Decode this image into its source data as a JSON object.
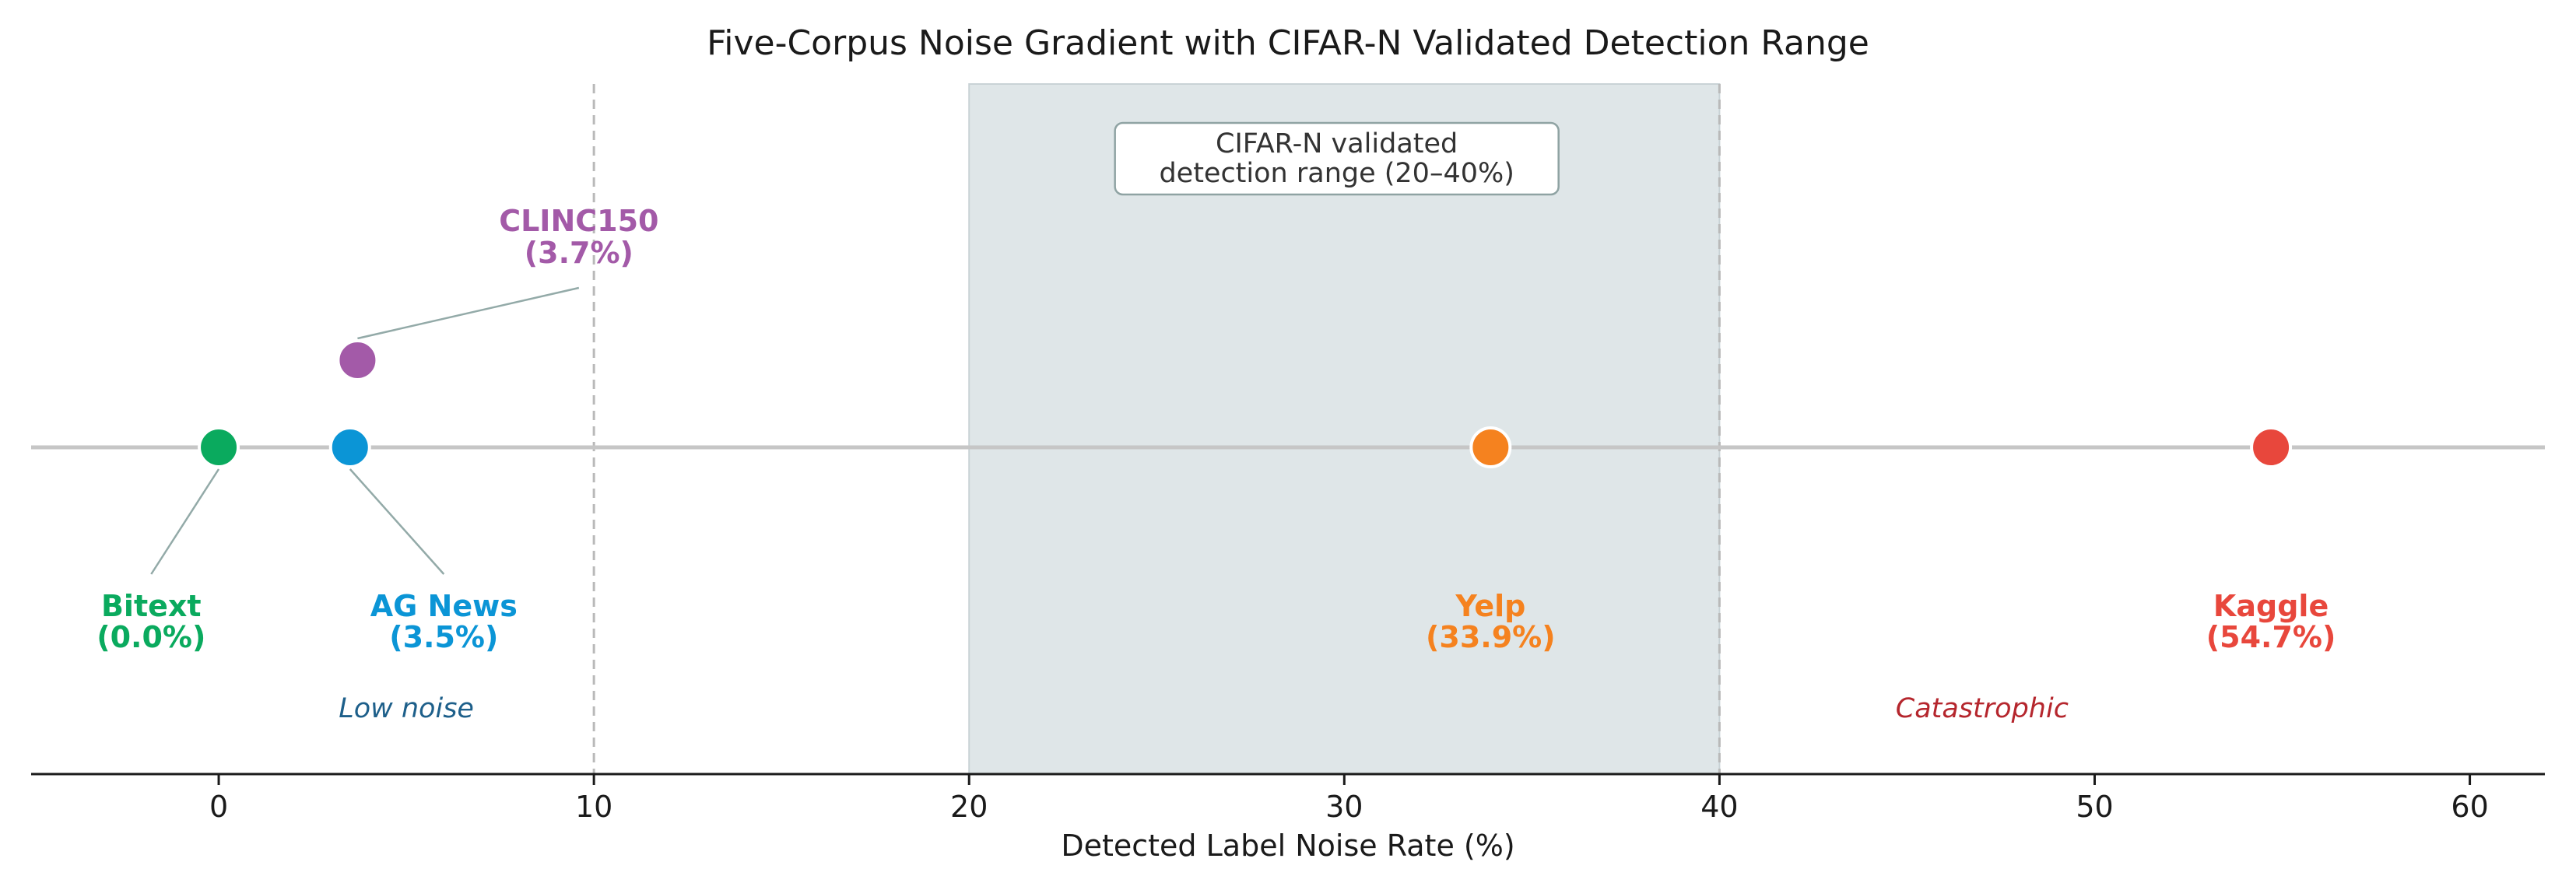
{
  "chart_data": {
    "type": "scatter",
    "title": "Five-Corpus Noise Gradient with CIFAR-N Validated Detection Range",
    "xlabel": "Detected Label Noise Rate (%)",
    "ylabel": "",
    "xlim": [
      -5,
      62
    ],
    "xticks": [
      0,
      10,
      20,
      30,
      40,
      50,
      60
    ],
    "grid": false,
    "points": [
      {
        "name": "Bitext",
        "value_label": "(0.0%)",
        "x": 0.0,
        "color": "#0aaa5e",
        "label_pos": "below-left"
      },
      {
        "name": "AG News",
        "value_label": "(3.5%)",
        "x": 3.5,
        "color": "#0b95d6",
        "label_pos": "below-right"
      },
      {
        "name": "CLINC150",
        "value_label": "(3.7%)",
        "x": 3.7,
        "color": "#a35aa8",
        "label_pos": "above",
        "offset_row": true
      },
      {
        "name": "Yelp",
        "value_label": "(33.9%)",
        "x": 33.9,
        "color": "#f5821f",
        "label_pos": "below"
      },
      {
        "name": "Kaggle",
        "value_label": "(54.7%)",
        "x": 54.7,
        "color": "#e8473c",
        "label_pos": "below"
      }
    ],
    "shaded_region": {
      "x_start": 20,
      "x_end": 40,
      "color": "#dfe6e8",
      "label": "CIFAR-N validated\ndetection range (20–40%)"
    },
    "reference_lines": [
      {
        "x": 10,
        "style": "dashed"
      },
      {
        "x": 40,
        "style": "dashed"
      }
    ],
    "zone_labels": [
      {
        "text": "Low noise",
        "x": 5,
        "color": "#1d5f8a"
      },
      {
        "text": "Catastrophic",
        "x": 47,
        "color": "#b5262d"
      }
    ]
  }
}
